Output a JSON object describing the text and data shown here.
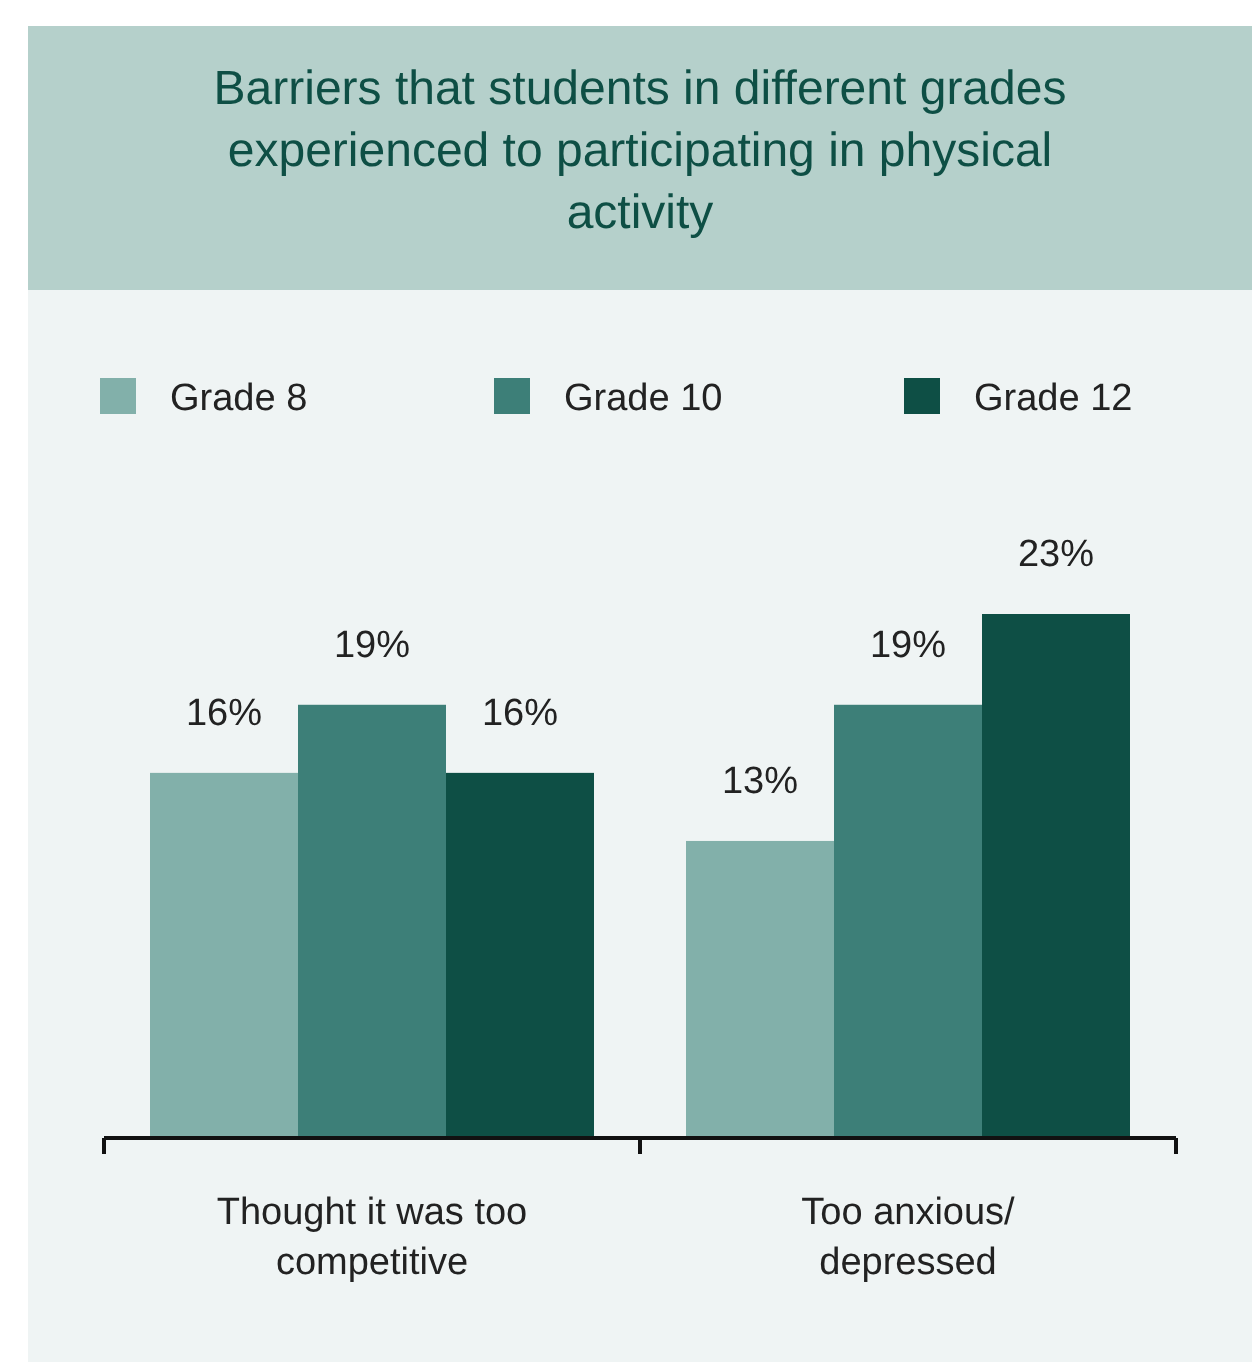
{
  "chart_data": {
    "type": "bar",
    "title": "Barriers that students in different grades experienced to participating in physical activity",
    "categories": [
      "Thought it was too competitive",
      "Too anxious/ depressed"
    ],
    "series": [
      {
        "name": "Grade 8",
        "color": "#82b0aa",
        "values": [
          16,
          13
        ],
        "value_labels": [
          "16%",
          "13%"
        ]
      },
      {
        "name": "Grade 10",
        "color": "#3d7f78",
        "values": [
          19,
          19
        ],
        "value_labels": [
          "19%",
          "19%"
        ]
      },
      {
        "name": "Grade 12",
        "color": "#0e4f45",
        "values": [
          16,
          23
        ],
        "value_labels": [
          "16%",
          "23%"
        ]
      }
    ],
    "legend": "top"
  }
}
